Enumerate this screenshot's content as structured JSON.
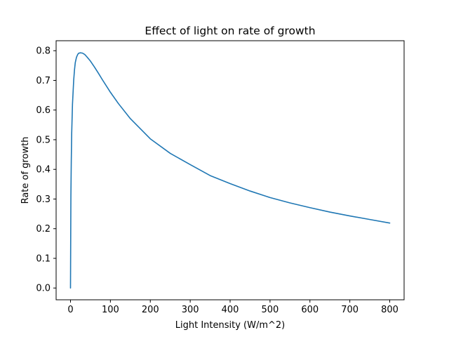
{
  "chart_data": {
    "type": "line",
    "title": "Effect of light on rate of growth",
    "xlabel": "Light Intensity (W/m^2)",
    "ylabel": "Rate of growth",
    "xlim": [
      -36,
      836
    ],
    "ylim": [
      -0.0397,
      0.8337
    ],
    "grid": false,
    "x_ticks": [
      0,
      100,
      200,
      300,
      400,
      500,
      600,
      700,
      800
    ],
    "x_tick_labels": [
      "0",
      "100",
      "200",
      "300",
      "400",
      "500",
      "600",
      "700",
      "800"
    ],
    "y_ticks": [
      0.0,
      0.1,
      0.2,
      0.3,
      0.4,
      0.5,
      0.6,
      0.7,
      0.8
    ],
    "y_tick_labels": [
      "0.0",
      "0.1",
      "0.2",
      "0.3",
      "0.4",
      "0.5",
      "0.6",
      "0.7",
      "0.8"
    ],
    "series": [
      {
        "color": "#1f77b4",
        "x": [
          0,
          1,
          2,
          3,
          5,
          8,
          10,
          12,
          15,
          18,
          20,
          24,
          30,
          36,
          40,
          50,
          60,
          70,
          80,
          100,
          120,
          150,
          200,
          250,
          300,
          350,
          400,
          450,
          500,
          550,
          600,
          650,
          700,
          750,
          800
        ],
        "y": [
          0.0,
          0.31,
          0.43,
          0.52,
          0.62,
          0.7,
          0.735,
          0.76,
          0.778,
          0.787,
          0.791,
          0.793,
          0.792,
          0.787,
          0.781,
          0.765,
          0.745,
          0.724,
          0.702,
          0.66,
          0.622,
          0.571,
          0.503,
          0.454,
          0.416,
          0.379,
          0.352,
          0.327,
          0.305,
          0.287,
          0.271,
          0.256,
          0.243,
          0.231,
          0.219
        ]
      }
    ]
  }
}
